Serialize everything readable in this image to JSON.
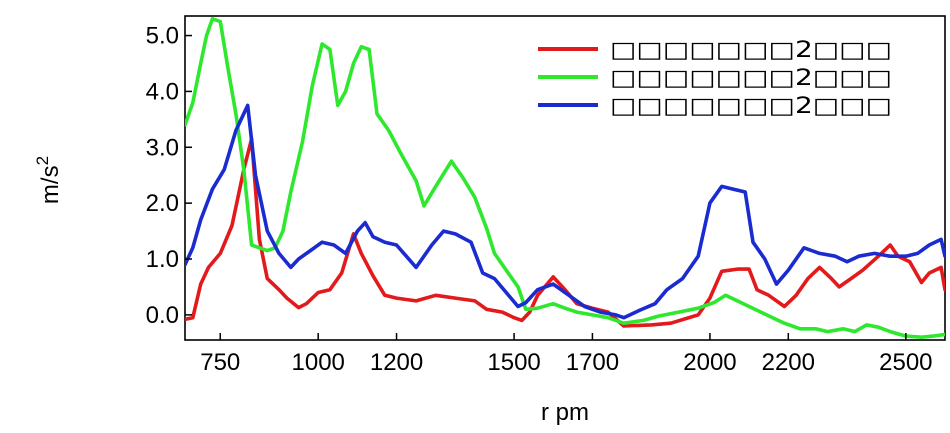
{
  "chart_data": {
    "type": "line",
    "xlabel": "r pm",
    "ylabel": "m/s",
    "ylabel_sup": "2",
    "x_ticks": [
      {
        "value": 750,
        "label": "750"
      },
      {
        "value": 1000,
        "label": "1000"
      },
      {
        "value": 1200,
        "label": "1200"
      },
      {
        "value": 1500,
        "label": "1500"
      },
      {
        "value": 1700,
        "label": "1700"
      },
      {
        "value": 2000,
        "label": "2000"
      },
      {
        "value": 2200,
        "label": "2200"
      },
      {
        "value": 2500,
        "label": "2500"
      }
    ],
    "y_ticks": [
      {
        "value": 0,
        "label": "0.0"
      },
      {
        "value": 1,
        "label": "1.0"
      },
      {
        "value": 2,
        "label": "2.0"
      },
      {
        "value": 3,
        "label": "3.0"
      },
      {
        "value": 4,
        "label": "4.0"
      },
      {
        "value": 5,
        "label": "5.0"
      }
    ],
    "xlim": [
      660,
      2600
    ],
    "ylim": [
      -0.45,
      5.35
    ],
    "grid": false,
    "legend_position": "top-right",
    "series": [
      {
        "name": "□□□□□□□2□□□",
        "color": "#e31a1c",
        "points": [
          [
            660,
            -0.08
          ],
          [
            680,
            -0.05
          ],
          [
            700,
            0.55
          ],
          [
            720,
            0.85
          ],
          [
            750,
            1.1
          ],
          [
            780,
            1.6
          ],
          [
            810,
            2.6
          ],
          [
            830,
            3.15
          ],
          [
            850,
            1.35
          ],
          [
            870,
            0.65
          ],
          [
            900,
            0.45
          ],
          [
            920,
            0.3
          ],
          [
            950,
            0.13
          ],
          [
            970,
            0.2
          ],
          [
            1000,
            0.4
          ],
          [
            1030,
            0.45
          ],
          [
            1060,
            0.75
          ],
          [
            1090,
            1.45
          ],
          [
            1110,
            1.1
          ],
          [
            1140,
            0.7
          ],
          [
            1170,
            0.35
          ],
          [
            1200,
            0.3
          ],
          [
            1250,
            0.25
          ],
          [
            1300,
            0.35
          ],
          [
            1350,
            0.3
          ],
          [
            1400,
            0.25
          ],
          [
            1430,
            0.1
          ],
          [
            1470,
            0.05
          ],
          [
            1500,
            -0.05
          ],
          [
            1520,
            -0.1
          ],
          [
            1540,
            0.05
          ],
          [
            1560,
            0.35
          ],
          [
            1600,
            0.68
          ],
          [
            1630,
            0.45
          ],
          [
            1660,
            0.2
          ],
          [
            1700,
            0.12
          ],
          [
            1740,
            0.05
          ],
          [
            1780,
            -0.2
          ],
          [
            1850,
            -0.18
          ],
          [
            1900,
            -0.15
          ],
          [
            1970,
            0.0
          ],
          [
            2000,
            0.3
          ],
          [
            2030,
            0.78
          ],
          [
            2070,
            0.82
          ],
          [
            2100,
            0.82
          ],
          [
            2120,
            0.45
          ],
          [
            2150,
            0.35
          ],
          [
            2190,
            0.15
          ],
          [
            2220,
            0.35
          ],
          [
            2250,
            0.65
          ],
          [
            2280,
            0.85
          ],
          [
            2310,
            0.65
          ],
          [
            2330,
            0.5
          ],
          [
            2360,
            0.65
          ],
          [
            2390,
            0.8
          ],
          [
            2430,
            1.05
          ],
          [
            2460,
            1.25
          ],
          [
            2480,
            1.05
          ],
          [
            2510,
            0.95
          ],
          [
            2540,
            0.58
          ],
          [
            2560,
            0.75
          ],
          [
            2590,
            0.85
          ],
          [
            2600,
            0.45
          ]
        ]
      },
      {
        "name": "□□□□□□□2□□□",
        "color": "#2ee82e",
        "points": [
          [
            660,
            3.4
          ],
          [
            680,
            3.8
          ],
          [
            700,
            4.5
          ],
          [
            715,
            5.0
          ],
          [
            730,
            5.3
          ],
          [
            750,
            5.25
          ],
          [
            770,
            4.4
          ],
          [
            790,
            3.6
          ],
          [
            810,
            2.6
          ],
          [
            830,
            1.25
          ],
          [
            850,
            1.2
          ],
          [
            870,
            1.15
          ],
          [
            890,
            1.2
          ],
          [
            910,
            1.5
          ],
          [
            930,
            2.2
          ],
          [
            960,
            3.1
          ],
          [
            985,
            4.1
          ],
          [
            1010,
            4.85
          ],
          [
            1030,
            4.75
          ],
          [
            1050,
            3.75
          ],
          [
            1070,
            4.0
          ],
          [
            1090,
            4.5
          ],
          [
            1110,
            4.8
          ],
          [
            1130,
            4.75
          ],
          [
            1150,
            3.6
          ],
          [
            1180,
            3.3
          ],
          [
            1210,
            2.9
          ],
          [
            1250,
            2.4
          ],
          [
            1270,
            1.95
          ],
          [
            1300,
            2.3
          ],
          [
            1340,
            2.75
          ],
          [
            1370,
            2.45
          ],
          [
            1400,
            2.1
          ],
          [
            1430,
            1.55
          ],
          [
            1450,
            1.1
          ],
          [
            1480,
            0.8
          ],
          [
            1510,
            0.5
          ],
          [
            1530,
            0.1
          ],
          [
            1560,
            0.12
          ],
          [
            1600,
            0.2
          ],
          [
            1630,
            0.12
          ],
          [
            1660,
            0.05
          ],
          [
            1700,
            0.0
          ],
          [
            1740,
            -0.05
          ],
          [
            1780,
            -0.15
          ],
          [
            1830,
            -0.1
          ],
          [
            1870,
            -0.02
          ],
          [
            1920,
            0.05
          ],
          [
            1970,
            0.12
          ],
          [
            2010,
            0.22
          ],
          [
            2040,
            0.35
          ],
          [
            2070,
            0.25
          ],
          [
            2100,
            0.15
          ],
          [
            2130,
            0.05
          ],
          [
            2160,
            -0.05
          ],
          [
            2190,
            -0.15
          ],
          [
            2230,
            -0.25
          ],
          [
            2270,
            -0.25
          ],
          [
            2300,
            -0.3
          ],
          [
            2340,
            -0.25
          ],
          [
            2370,
            -0.3
          ],
          [
            2400,
            -0.18
          ],
          [
            2430,
            -0.22
          ],
          [
            2460,
            -0.3
          ],
          [
            2500,
            -0.38
          ],
          [
            2540,
            -0.4
          ],
          [
            2570,
            -0.38
          ],
          [
            2600,
            -0.35
          ]
        ]
      },
      {
        "name": "□□□□□□□2□□□",
        "color": "#1a2bd0",
        "points": [
          [
            660,
            0.9
          ],
          [
            680,
            1.2
          ],
          [
            700,
            1.7
          ],
          [
            730,
            2.25
          ],
          [
            760,
            2.6
          ],
          [
            790,
            3.3
          ],
          [
            820,
            3.75
          ],
          [
            840,
            2.5
          ],
          [
            870,
            1.5
          ],
          [
            900,
            1.1
          ],
          [
            930,
            0.85
          ],
          [
            950,
            1.0
          ],
          [
            980,
            1.15
          ],
          [
            1010,
            1.3
          ],
          [
            1040,
            1.25
          ],
          [
            1070,
            1.1
          ],
          [
            1100,
            1.5
          ],
          [
            1120,
            1.65
          ],
          [
            1140,
            1.4
          ],
          [
            1170,
            1.3
          ],
          [
            1200,
            1.25
          ],
          [
            1250,
            0.85
          ],
          [
            1290,
            1.25
          ],
          [
            1320,
            1.5
          ],
          [
            1350,
            1.45
          ],
          [
            1390,
            1.3
          ],
          [
            1420,
            0.75
          ],
          [
            1450,
            0.65
          ],
          [
            1480,
            0.4
          ],
          [
            1510,
            0.15
          ],
          [
            1530,
            0.22
          ],
          [
            1560,
            0.45
          ],
          [
            1600,
            0.55
          ],
          [
            1640,
            0.35
          ],
          [
            1680,
            0.15
          ],
          [
            1720,
            0.05
          ],
          [
            1760,
            0.0
          ],
          [
            1780,
            -0.05
          ],
          [
            1820,
            0.08
          ],
          [
            1860,
            0.2
          ],
          [
            1890,
            0.45
          ],
          [
            1930,
            0.65
          ],
          [
            1970,
            1.05
          ],
          [
            2000,
            2.0
          ],
          [
            2030,
            2.3
          ],
          [
            2060,
            2.25
          ],
          [
            2090,
            2.2
          ],
          [
            2110,
            1.3
          ],
          [
            2140,
            1.0
          ],
          [
            2170,
            0.55
          ],
          [
            2200,
            0.8
          ],
          [
            2240,
            1.2
          ],
          [
            2280,
            1.1
          ],
          [
            2320,
            1.05
          ],
          [
            2350,
            0.95
          ],
          [
            2380,
            1.05
          ],
          [
            2420,
            1.1
          ],
          [
            2460,
            1.05
          ],
          [
            2500,
            1.05
          ],
          [
            2530,
            1.1
          ],
          [
            2560,
            1.25
          ],
          [
            2590,
            1.35
          ],
          [
            2600,
            1.05
          ]
        ]
      }
    ]
  }
}
